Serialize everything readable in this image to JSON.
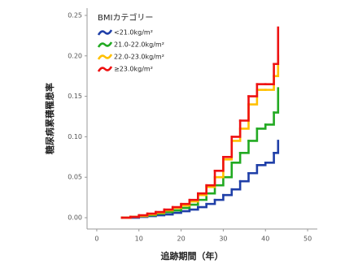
{
  "chart_data": {
    "type": "step",
    "y_label": "糖尿病累積罹患率",
    "x_label": "追跡期間（年）",
    "legend_title": "BMIカテゴリー",
    "legend": "top-left",
    "x": [
      6,
      8,
      10,
      12,
      14,
      16,
      18,
      20,
      22,
      24,
      26,
      28,
      30,
      32,
      34,
      36,
      38,
      40,
      42,
      43
    ],
    "series": [
      {
        "name": "<21.0kg/m²",
        "color": "#1f3fa8",
        "values": [
          0,
          0,
          0.001,
          0.002,
          0.003,
          0.004,
          0.006,
          0.008,
          0.01,
          0.013,
          0.017,
          0.022,
          0.028,
          0.035,
          0.045,
          0.055,
          0.065,
          0.068,
          0.08,
          0.095
        ]
      },
      {
        "name": "21.0-22.0kg/m²",
        "color": "#22aa22",
        "values": [
          0,
          0.001,
          0.002,
          0.003,
          0.005,
          0.007,
          0.009,
          0.012,
          0.016,
          0.022,
          0.03,
          0.04,
          0.05,
          0.068,
          0.08,
          0.095,
          0.11,
          0.115,
          0.13,
          0.16
        ]
      },
      {
        "name": "22.0-23.0kg/m²",
        "color": "#ffc000",
        "values": [
          0,
          0.001,
          0.002,
          0.004,
          0.006,
          0.009,
          0.012,
          0.015,
          0.02,
          0.028,
          0.038,
          0.05,
          0.072,
          0.095,
          0.11,
          0.14,
          0.158,
          0.158,
          0.175,
          0.2
        ]
      },
      {
        "name": "≥23.0kg/m²",
        "color": "#ee1111",
        "values": [
          0,
          0.001,
          0.003,
          0.005,
          0.007,
          0.01,
          0.013,
          0.017,
          0.022,
          0.03,
          0.04,
          0.058,
          0.075,
          0.1,
          0.12,
          0.15,
          0.165,
          0.165,
          0.19,
          0.235
        ]
      }
    ],
    "xlim": [
      -2.3,
      52.3
    ],
    "ylim": [
      -0.014,
      0.259
    ],
    "xticks": [
      0,
      10,
      20,
      30,
      40,
      50
    ],
    "yticks": [
      {
        "value": 0,
        "label": "0.00"
      },
      {
        "value": 0.05,
        "label": "0.05"
      },
      {
        "value": 0.1,
        "label": "0.10"
      },
      {
        "value": 0.15,
        "label": "0.15"
      },
      {
        "value": 0.2,
        "label": "0.20"
      },
      {
        "value": 0.25,
        "label": "0.25"
      }
    ],
    "grid": false
  }
}
